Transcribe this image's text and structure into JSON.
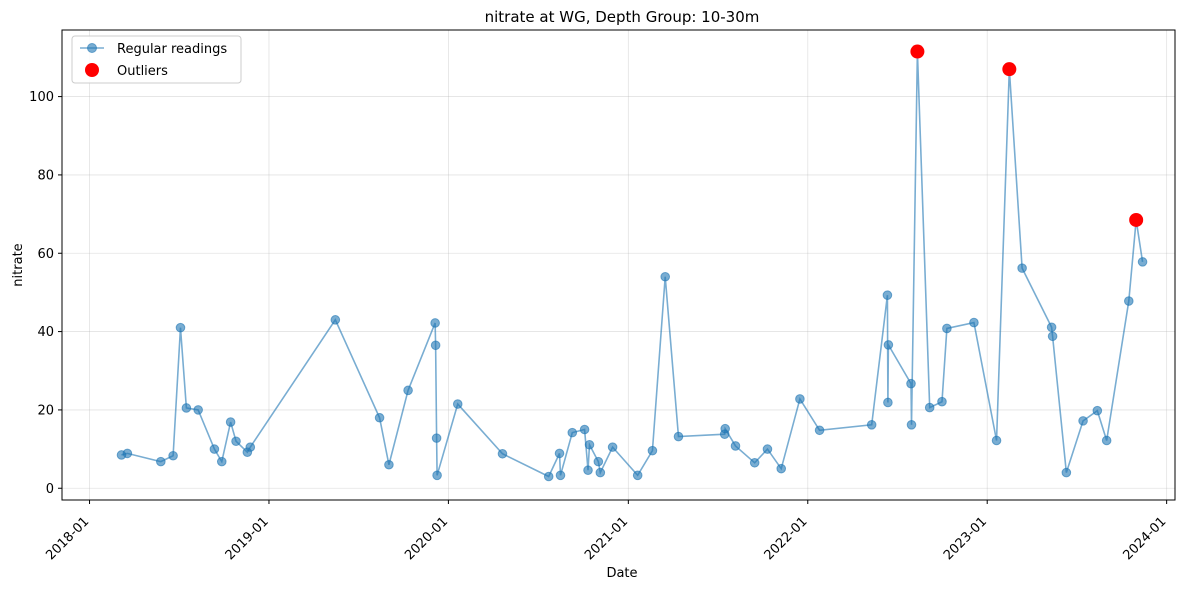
{
  "chart_data": {
    "type": "line",
    "title": "nitrate at WG, Depth Group: 10-30m",
    "xlabel": "Date",
    "ylabel": "nitrate",
    "xlim": [
      "2017-11-06",
      "2024-01-18"
    ],
    "ylim": [
      -3,
      117
    ],
    "x_ticks": [
      "2018-01",
      "2019-01",
      "2020-01",
      "2021-01",
      "2022-01",
      "2023-01",
      "2024-01"
    ],
    "y_ticks": [
      0,
      20,
      40,
      60,
      80,
      100
    ],
    "grid": true,
    "legend_position": "top-left",
    "colors": {
      "regular": "#1f77b4",
      "outlier": "#ff0000"
    },
    "series": [
      {
        "name": "Regular readings",
        "style": "line-markers",
        "points": [
          [
            "2018-03-07",
            8.5
          ],
          [
            "2018-03-19",
            8.9
          ],
          [
            "2018-05-26",
            6.8
          ],
          [
            "2018-06-20",
            8.3
          ],
          [
            "2018-07-05",
            41.0
          ],
          [
            "2018-07-17",
            20.5
          ],
          [
            "2018-08-10",
            20.0
          ],
          [
            "2018-09-12",
            10.0
          ],
          [
            "2018-09-27",
            6.8
          ],
          [
            "2018-10-15",
            16.9
          ],
          [
            "2018-10-26",
            12.0
          ],
          [
            "2018-11-18",
            9.2
          ],
          [
            "2018-11-24",
            10.5
          ],
          [
            "2019-05-16",
            43.0
          ],
          [
            "2019-08-14",
            18.0
          ],
          [
            "2019-09-02",
            6.0
          ],
          [
            "2019-10-11",
            25.0
          ],
          [
            "2019-12-05",
            42.2
          ],
          [
            "2019-12-06",
            36.5
          ],
          [
            "2019-12-08",
            12.8
          ],
          [
            "2019-12-09",
            3.3
          ],
          [
            "2020-01-20",
            21.5
          ],
          [
            "2020-04-20",
            8.8
          ],
          [
            "2020-07-23",
            3.0
          ],
          [
            "2020-08-14",
            8.9
          ],
          [
            "2020-08-16",
            3.3
          ],
          [
            "2020-09-09",
            14.2
          ],
          [
            "2020-10-04",
            15.0
          ],
          [
            "2020-10-11",
            4.6
          ],
          [
            "2020-10-14",
            11.1
          ],
          [
            "2020-11-01",
            6.8
          ],
          [
            "2020-11-05",
            4.0
          ],
          [
            "2020-11-30",
            10.5
          ],
          [
            "2021-01-20",
            3.3
          ],
          [
            "2021-02-19",
            9.6
          ],
          [
            "2021-03-17",
            54.0
          ],
          [
            "2021-04-13",
            13.2
          ],
          [
            "2021-07-16",
            13.8
          ],
          [
            "2021-07-17",
            15.2
          ],
          [
            "2021-08-07",
            10.8
          ],
          [
            "2021-09-15",
            6.5
          ],
          [
            "2021-10-11",
            10.0
          ],
          [
            "2021-11-08",
            5.0
          ],
          [
            "2021-12-16",
            22.8
          ],
          [
            "2022-01-25",
            14.8
          ],
          [
            "2022-05-11",
            16.2
          ],
          [
            "2022-06-12",
            49.3
          ],
          [
            "2022-06-13",
            21.9
          ],
          [
            "2022-06-14",
            36.6
          ],
          [
            "2022-07-30",
            26.7
          ],
          [
            "2022-07-31",
            16.2
          ],
          [
            "2022-08-12",
            111.5
          ],
          [
            "2022-09-06",
            20.6
          ],
          [
            "2022-10-01",
            22.1
          ],
          [
            "2022-10-11",
            40.8
          ],
          [
            "2022-12-05",
            42.3
          ],
          [
            "2023-01-20",
            12.2
          ],
          [
            "2023-02-15",
            107.0
          ],
          [
            "2023-03-13",
            56.2
          ],
          [
            "2023-05-12",
            41.1
          ],
          [
            "2023-05-14",
            38.8
          ],
          [
            "2023-06-11",
            4.0
          ],
          [
            "2023-07-15",
            17.2
          ],
          [
            "2023-08-13",
            19.8
          ],
          [
            "2023-09-01",
            12.2
          ],
          [
            "2023-10-16",
            47.8
          ],
          [
            "2023-10-31",
            68.5
          ],
          [
            "2023-11-13",
            57.8
          ]
        ]
      },
      {
        "name": "Outliers",
        "style": "markers",
        "points": [
          [
            "2022-08-12",
            111.5
          ],
          [
            "2023-02-15",
            107.0
          ],
          [
            "2023-10-31",
            68.5
          ]
        ]
      }
    ]
  }
}
